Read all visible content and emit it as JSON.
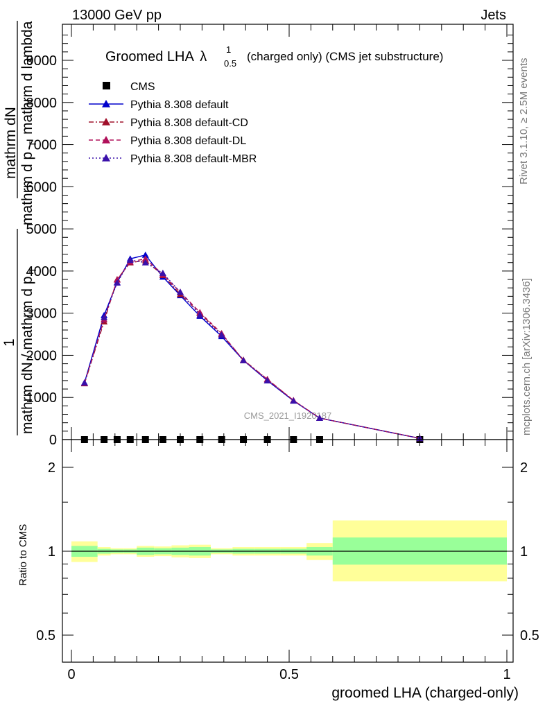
{
  "header": {
    "energy_label": "13000 GeV pp",
    "category_label": "Jets"
  },
  "side_labels": {
    "rivet": "Rivet 3.1.10, ≥ 2.5M events",
    "source": "mcplots.cern.ch [arXiv:1306.3436]"
  },
  "watermark": "CMS_2021_I1920187",
  "chart_data": [
    {
      "type": "line",
      "title": {
        "main": "Groomed LHA",
        "symbol": "λ",
        "sup": "1",
        "sub": "0.5",
        "rest": "(charged only) (CMS jet substructure)"
      },
      "ylabel": {
        "numerator": "mathrm dN",
        "fraction_1": "mathrm d p",
        "fraction_1_sub": "T",
        "fraction_1_rest": "mathrm d lambda",
        "numerator_one": "1",
        "denominator": "mathrm dN / mathrm d p",
        "denominator_sub": "T"
      },
      "xlim": [
        0,
        1
      ],
      "ylim": [
        0,
        9800
      ],
      "yticks": [
        0,
        1000,
        2000,
        3000,
        4000,
        5000,
        6000,
        7000,
        8000,
        9000
      ],
      "ytick_labels": [
        "0",
        "1000",
        "2000",
        "3000",
        "4000",
        "5000",
        "6000",
        "7000",
        "8000",
        "9000"
      ],
      "x": [
        0.03,
        0.075,
        0.105,
        0.135,
        0.17,
        0.21,
        0.25,
        0.295,
        0.345,
        0.395,
        0.45,
        0.51,
        0.57,
        0.8
      ],
      "series": [
        {
          "name": "CMS",
          "marker": "square",
          "color": "#000000",
          "values": [
            0,
            0,
            0,
            0,
            0,
            0,
            0,
            0,
            0,
            0,
            0,
            0,
            0,
            0
          ]
        },
        {
          "name": "Pythia 8.308 default",
          "marker": "triangle",
          "line": "solid",
          "color": "#0000cc",
          "values": [
            1350,
            2950,
            3730,
            4290,
            4380,
            3860,
            3420,
            2930,
            2450,
            1880,
            1400,
            920,
            510,
            30
          ]
        },
        {
          "name": "Pythia 8.308 default-CD",
          "marker": "triangle",
          "line": "dashdot",
          "color": "#a0102a",
          "values": [
            1330,
            2800,
            3800,
            4200,
            4250,
            3900,
            3450,
            3000,
            2500,
            1890,
            1430,
            930,
            510,
            30
          ]
        },
        {
          "name": "Pythia 8.308 default-DL",
          "marker": "triangle",
          "line": "dashed",
          "color": "#b0105a",
          "values": [
            1340,
            2850,
            3790,
            4220,
            4290,
            3920,
            3500,
            3020,
            2520,
            1880,
            1430,
            930,
            510,
            30
          ]
        },
        {
          "name": "Pythia 8.308 default-MBR",
          "marker": "triangle",
          "line": "dotted",
          "color": "#3a10aa",
          "values": [
            1350,
            2900,
            3720,
            4260,
            4200,
            3950,
            3500,
            2960,
            2480,
            1880,
            1400,
            920,
            510,
            30
          ]
        }
      ],
      "legend": "top-left"
    },
    {
      "type": "area",
      "ylabel": "Ratio to CMS",
      "xlabel": "groomed LHA (charged-only)",
      "xlim": [
        0,
        1
      ],
      "ylim": [
        0.42,
        2.3
      ],
      "yscale": "log",
      "yticks": [
        0.5,
        1,
        2
      ],
      "ytick_labels": [
        "0.5",
        "1",
        "2"
      ],
      "xticks": [
        0,
        0.5,
        1
      ],
      "xtick_labels": [
        "0",
        "0.5",
        "1"
      ],
      "reference_line": 1,
      "bins": [
        {
          "x0": 0.0,
          "x1": 0.06,
          "green": [
            0.955,
            1.045
          ],
          "yellow": [
            0.915,
            1.085
          ]
        },
        {
          "x0": 0.06,
          "x1": 0.09,
          "green": [
            0.98,
            1.02
          ],
          "yellow": [
            0.965,
            1.035
          ]
        },
        {
          "x0": 0.09,
          "x1": 0.12,
          "green": [
            0.985,
            1.015
          ],
          "yellow": [
            0.975,
            1.025
          ]
        },
        {
          "x0": 0.12,
          "x1": 0.15,
          "green": [
            0.985,
            1.015
          ],
          "yellow": [
            0.975,
            1.025
          ]
        },
        {
          "x0": 0.15,
          "x1": 0.19,
          "green": [
            0.97,
            1.03
          ],
          "yellow": [
            0.955,
            1.045
          ]
        },
        {
          "x0": 0.19,
          "x1": 0.23,
          "green": [
            0.975,
            1.025
          ],
          "yellow": [
            0.96,
            1.04
          ]
        },
        {
          "x0": 0.23,
          "x1": 0.27,
          "green": [
            0.97,
            1.03
          ],
          "yellow": [
            0.95,
            1.05
          ]
        },
        {
          "x0": 0.27,
          "x1": 0.32,
          "green": [
            0.965,
            1.035
          ],
          "yellow": [
            0.945,
            1.055
          ]
        },
        {
          "x0": 0.32,
          "x1": 0.37,
          "green": [
            0.985,
            1.015
          ],
          "yellow": [
            0.975,
            1.025
          ]
        },
        {
          "x0": 0.37,
          "x1": 0.42,
          "green": [
            0.98,
            1.02
          ],
          "yellow": [
            0.965,
            1.035
          ]
        },
        {
          "x0": 0.42,
          "x1": 0.48,
          "green": [
            0.98,
            1.02
          ],
          "yellow": [
            0.965,
            1.035
          ]
        },
        {
          "x0": 0.48,
          "x1": 0.54,
          "green": [
            0.98,
            1.02
          ],
          "yellow": [
            0.965,
            1.035
          ]
        },
        {
          "x0": 0.54,
          "x1": 0.6,
          "green": [
            0.965,
            1.035
          ],
          "yellow": [
            0.93,
            1.07
          ]
        },
        {
          "x0": 0.6,
          "x1": 1.0,
          "green": [
            0.895,
            1.12
          ],
          "yellow": [
            0.78,
            1.29
          ]
        }
      ],
      "colors": {
        "green": "#99ff99",
        "yellow": "#ffff99"
      }
    }
  ]
}
